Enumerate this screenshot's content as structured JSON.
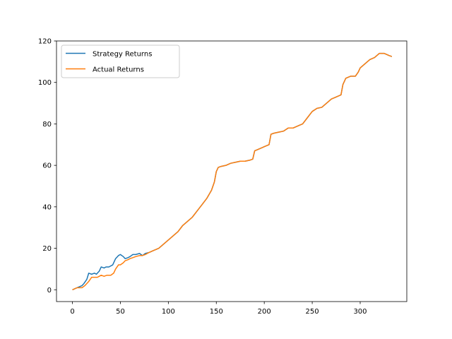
{
  "chart_data": {
    "type": "line",
    "title": "",
    "xlabel": "",
    "ylabel": "",
    "xlim": [
      -16.6,
      348.6
    ],
    "ylim": [
      -5.7,
      120
    ],
    "xticks": [
      0,
      50,
      100,
      150,
      200,
      250,
      300
    ],
    "yticks": [
      0,
      20,
      40,
      60,
      80,
      100,
      120
    ],
    "grid": false,
    "legend_position": "top-left",
    "series": [
      {
        "name": "Strategy Returns",
        "color": "#1f77b4",
        "points": [
          [
            0,
            0
          ],
          [
            5,
            1
          ],
          [
            10,
            2
          ],
          [
            12,
            3
          ],
          [
            15,
            5
          ],
          [
            17,
            8
          ],
          [
            20,
            7.5
          ],
          [
            23,
            8
          ],
          [
            25,
            7.5
          ],
          [
            28,
            9
          ],
          [
            30,
            11
          ],
          [
            33,
            10.5
          ],
          [
            35,
            11
          ],
          [
            38,
            11
          ],
          [
            42,
            12
          ],
          [
            45,
            15
          ],
          [
            48,
            16.5
          ],
          [
            50,
            17
          ],
          [
            53,
            16
          ],
          [
            55,
            15
          ],
          [
            58,
            15.5
          ],
          [
            60,
            16
          ],
          [
            63,
            17
          ],
          [
            66,
            17
          ],
          [
            70,
            17.5
          ],
          [
            73,
            16.5
          ],
          [
            76,
            17.5
          ],
          [
            80,
            18
          ],
          [
            85,
            19
          ],
          [
            90,
            20
          ],
          [
            95,
            22
          ],
          [
            100,
            24
          ],
          [
            105,
            26
          ],
          [
            110,
            28
          ],
          [
            115,
            31
          ],
          [
            120,
            33
          ],
          [
            125,
            35
          ],
          [
            130,
            38
          ],
          [
            135,
            41
          ],
          [
            140,
            44
          ],
          [
            145,
            48
          ],
          [
            148,
            52
          ],
          [
            150,
            57
          ],
          [
            152,
            59
          ],
          [
            155,
            59.5
          ],
          [
            160,
            60
          ],
          [
            165,
            61
          ],
          [
            170,
            61.5
          ],
          [
            175,
            62
          ],
          [
            180,
            62
          ],
          [
            185,
            62.5
          ],
          [
            188,
            63
          ],
          [
            190,
            67
          ],
          [
            195,
            68
          ],
          [
            200,
            69
          ],
          [
            205,
            70
          ],
          [
            207,
            75
          ],
          [
            210,
            75.5
          ],
          [
            215,
            76
          ],
          [
            220,
            76.5
          ],
          [
            225,
            78
          ],
          [
            230,
            78
          ],
          [
            235,
            79
          ],
          [
            240,
            80
          ],
          [
            245,
            83
          ],
          [
            250,
            86
          ],
          [
            255,
            87.5
          ],
          [
            260,
            88
          ],
          [
            265,
            90
          ],
          [
            270,
            92
          ],
          [
            275,
            93
          ],
          [
            280,
            94
          ],
          [
            282,
            99
          ],
          [
            285,
            102
          ],
          [
            290,
            103
          ],
          [
            295,
            103
          ],
          [
            298,
            105
          ],
          [
            300,
            107
          ],
          [
            305,
            109
          ],
          [
            310,
            111
          ],
          [
            315,
            112
          ],
          [
            320,
            114
          ],
          [
            325,
            114
          ],
          [
            330,
            113
          ],
          [
            333,
            112.5
          ]
        ]
      },
      {
        "name": "Actual Returns",
        "color": "#ff7f0e",
        "points": [
          [
            0,
            0
          ],
          [
            5,
            1
          ],
          [
            10,
            1
          ],
          [
            13,
            2
          ],
          [
            15,
            3
          ],
          [
            17,
            4
          ],
          [
            20,
            6
          ],
          [
            23,
            6
          ],
          [
            26,
            6
          ],
          [
            28,
            6.5
          ],
          [
            30,
            7
          ],
          [
            33,
            6.5
          ],
          [
            36,
            7
          ],
          [
            40,
            7
          ],
          [
            43,
            8
          ],
          [
            45,
            10
          ],
          [
            48,
            12
          ],
          [
            50,
            12
          ],
          [
            53,
            13
          ],
          [
            55,
            14
          ],
          [
            58,
            14.5
          ],
          [
            60,
            15
          ],
          [
            63,
            15.5
          ],
          [
            66,
            16
          ],
          [
            70,
            16.5
          ],
          [
            73,
            16.5
          ],
          [
            76,
            17
          ],
          [
            80,
            18
          ],
          [
            85,
            19
          ],
          [
            90,
            20
          ],
          [
            95,
            22
          ],
          [
            100,
            24
          ],
          [
            105,
            26
          ],
          [
            110,
            28
          ],
          [
            115,
            31
          ],
          [
            120,
            33
          ],
          [
            125,
            35
          ],
          [
            130,
            38
          ],
          [
            135,
            41
          ],
          [
            140,
            44
          ],
          [
            145,
            48
          ],
          [
            148,
            52
          ],
          [
            150,
            57
          ],
          [
            152,
            59
          ],
          [
            155,
            59.5
          ],
          [
            160,
            60
          ],
          [
            165,
            61
          ],
          [
            170,
            61.5
          ],
          [
            175,
            62
          ],
          [
            180,
            62
          ],
          [
            185,
            62.5
          ],
          [
            188,
            63
          ],
          [
            190,
            67
          ],
          [
            195,
            68
          ],
          [
            200,
            69
          ],
          [
            205,
            70
          ],
          [
            207,
            75
          ],
          [
            210,
            75.5
          ],
          [
            215,
            76
          ],
          [
            220,
            76.5
          ],
          [
            225,
            78
          ],
          [
            230,
            78
          ],
          [
            235,
            79
          ],
          [
            240,
            80
          ],
          [
            245,
            83
          ],
          [
            250,
            86
          ],
          [
            255,
            87.5
          ],
          [
            260,
            88
          ],
          [
            265,
            90
          ],
          [
            270,
            92
          ],
          [
            275,
            93
          ],
          [
            280,
            94
          ],
          [
            282,
            99
          ],
          [
            285,
            102
          ],
          [
            290,
            103
          ],
          [
            295,
            103
          ],
          [
            298,
            105
          ],
          [
            300,
            107
          ],
          [
            305,
            109
          ],
          [
            310,
            111
          ],
          [
            315,
            112
          ],
          [
            320,
            114
          ],
          [
            325,
            114
          ],
          [
            330,
            113
          ],
          [
            333,
            112.5
          ]
        ]
      }
    ]
  }
}
